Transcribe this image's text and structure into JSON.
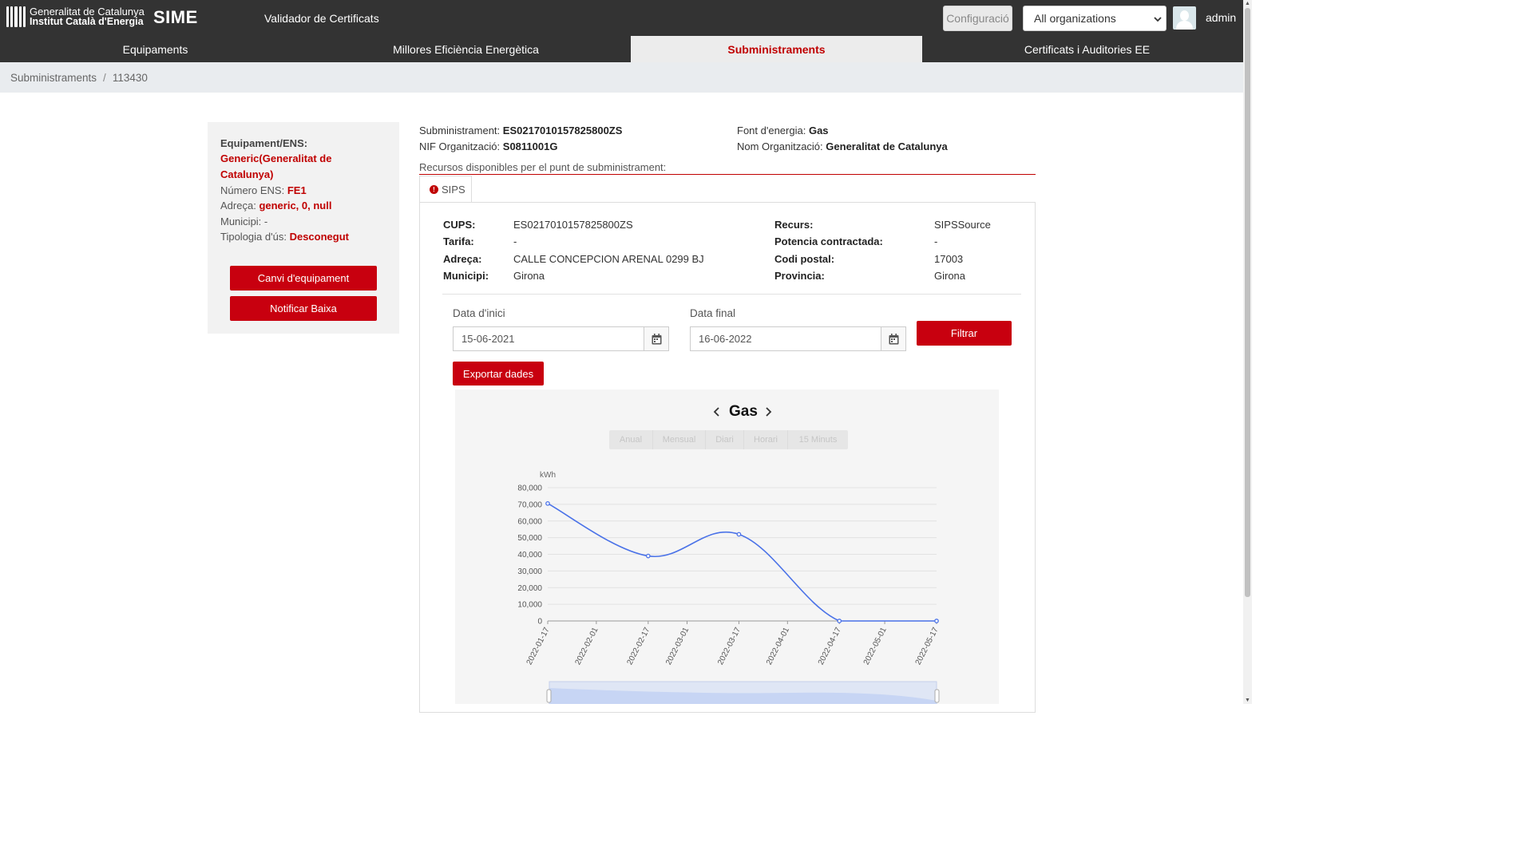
{
  "header": {
    "logo_line1": "Generalitat de Catalunya",
    "logo_line2": "Institut Català d'Energia",
    "app_name": "SIME",
    "subtitle": "Validador de Certificats",
    "config_label": "Configuració",
    "org_selected": "All organizations",
    "user": "admin",
    "bg_color": "#333333"
  },
  "nav": {
    "tabs": [
      {
        "label": "Equipaments"
      },
      {
        "label": "Millores Eficiència Energètica"
      },
      {
        "label": "Subministraments"
      },
      {
        "label": "Certificats i Auditories EE"
      }
    ],
    "active_tab": "Subministraments",
    "active_color": "#c00000"
  },
  "breadcrumb": {
    "items": [
      "Subministraments",
      "113430"
    ]
  },
  "equipment": {
    "heading": "Equipament/ENS:",
    "name_line1": "Generic(Generalitat de",
    "name_line2": "Catalunya)",
    "ens_label": "Número ENS:",
    "ens_value": "FE1",
    "address_label": "Adreça:",
    "address_value": "generic, 0, null",
    "municipi_label": "Municipi:",
    "municipi_value": "-",
    "tipologia_label": "Tipologia d'ús:",
    "tipologia_value": "Desconegut",
    "btn_change": "Canvi d'equipament",
    "btn_notify": "Notificar Baixa"
  },
  "supply": {
    "sub_label": "Subministrament:",
    "sub_value": "ES0217010157825800ZS",
    "nif_label": "NIF Organització:",
    "nif_value": "S0811001G",
    "font_label": "Font d'energia:",
    "font_value": "Gas",
    "org_label": "Nom Organització:",
    "org_value": "Generalitat de Catalunya",
    "resources_title": "Recursos disponibles per el punt de subministrament:",
    "tab_label": "SIPS",
    "tab_icon": "alert-icon"
  },
  "details": {
    "cups_label": "CUPS:",
    "cups_value": "ES0217010157825800ZS",
    "tarifa_label": "Tarifa:",
    "tarifa_value": "-",
    "adreca_label": "Adreça:",
    "adreca_value": "CALLE CONCEPCION ARENAL 0299 BJ",
    "municipi_label": "Municipi:",
    "municipi_value": "Girona",
    "recurs_label": "Recurs:",
    "recurs_value": "SIPSSource",
    "potencia_label": "Potencia contractada:",
    "potencia_value": "-",
    "codi_label": "Codi postal:",
    "codi_value": "17003",
    "provincia_label": "Provincia:",
    "provincia_value": "Girona"
  },
  "filter": {
    "start_label": "Data d'inici",
    "start_value": "15-06-2021",
    "end_label": "Data final",
    "end_value": "16-06-2022",
    "filter_btn": "Filtrar",
    "export_btn": "Exportar dades"
  },
  "chart": {
    "title": "Gas",
    "granularity": [
      "Anual",
      "Mensual",
      "Diari",
      "Horari",
      "15 Minuts"
    ]
  },
  "chart_data": {
    "type": "line",
    "title": "Gas",
    "ylabel": "kWh",
    "xlabel": "",
    "x": [
      "2022-01-17",
      "2022-02-17",
      "2022-03-17",
      "2022-04-17",
      "2022-05-17"
    ],
    "x_ticks": [
      "2022-01-17",
      "2022-02-01",
      "2022-02-17",
      "2022-03-01",
      "2022-03-17",
      "2022-04-01",
      "2022-04-17",
      "2022-05-01",
      "2022-05-17"
    ],
    "y_ticks": [
      0,
      10000,
      20000,
      30000,
      40000,
      50000,
      60000,
      70000,
      80000
    ],
    "y_tick_labels": [
      "0",
      "10,000",
      "20,000",
      "30,000",
      "40,000",
      "50,000",
      "60,000",
      "70,000",
      "80,000"
    ],
    "ylim": [
      0,
      80000
    ],
    "series": [
      {
        "values": [
          70500,
          39000,
          52000,
          0,
          0
        ],
        "color": "#4a72e8"
      }
    ],
    "grid": true,
    "smooth": true
  }
}
